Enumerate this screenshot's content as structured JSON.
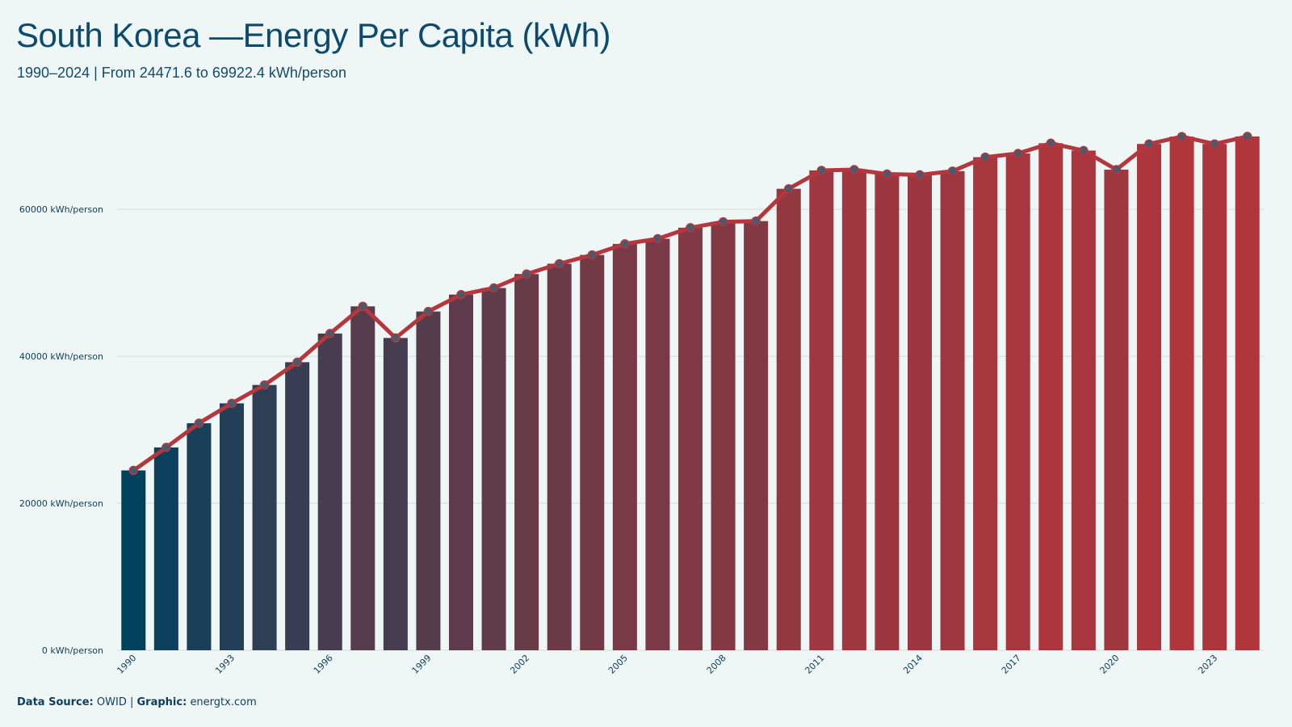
{
  "title": "South Korea —Energy Per Capita (kWh)",
  "subtitle": "1990–2024 | From 24471.6 to 69922.4 kWh/person",
  "footer": {
    "source_label": "Data Source:",
    "source_value": "OWID",
    "separator": "|",
    "graphic_label": "Graphic:",
    "graphic_value": "energtx.com"
  },
  "colors": {
    "background": "#eff6f6",
    "bar_start": "#00415e",
    "bar_end": "#b0363b",
    "line": "#b4373d",
    "marker_fill": "#4a5a6e",
    "marker_stroke": "#b4373d",
    "grid": "#d3dcdc",
    "text": "#0c3d5c"
  },
  "chart_data": {
    "type": "bar",
    "overlay": "line-with-markers",
    "x": [
      1990,
      1991,
      1992,
      1993,
      1994,
      1995,
      1996,
      1997,
      1998,
      1999,
      2000,
      2001,
      2002,
      2003,
      2004,
      2005,
      2006,
      2007,
      2008,
      2009,
      2010,
      2011,
      2012,
      2013,
      2014,
      2015,
      2016,
      2017,
      2018,
      2019,
      2020,
      2021,
      2022,
      2023,
      2024
    ],
    "values": [
      24471.6,
      27600,
      30900,
      33600,
      36100,
      39200,
      43100,
      46800,
      42500,
      46100,
      48400,
      49300,
      51200,
      52600,
      53800,
      55300,
      56000,
      57500,
      58300,
      58400,
      62800,
      65300,
      65400,
      64800,
      64700,
      65200,
      67100,
      67600,
      69000,
      68000,
      65400,
      68900,
      69900,
      68900,
      69922.4
    ],
    "x_tick_labels": [
      "1990",
      "1993",
      "1996",
      "1999",
      "2002",
      "2005",
      "2008",
      "2011",
      "2014",
      "2017",
      "2020",
      "2023"
    ],
    "y_ticks": [
      0,
      20000,
      40000,
      60000
    ],
    "y_tick_labels": [
      "0 kWh/person",
      "20000 kWh/person",
      "40000 kWh/person",
      "60000 kWh/person"
    ],
    "ylim": [
      0,
      72000
    ],
    "grid": "horizontal",
    "xlabel": "",
    "ylabel": ""
  }
}
